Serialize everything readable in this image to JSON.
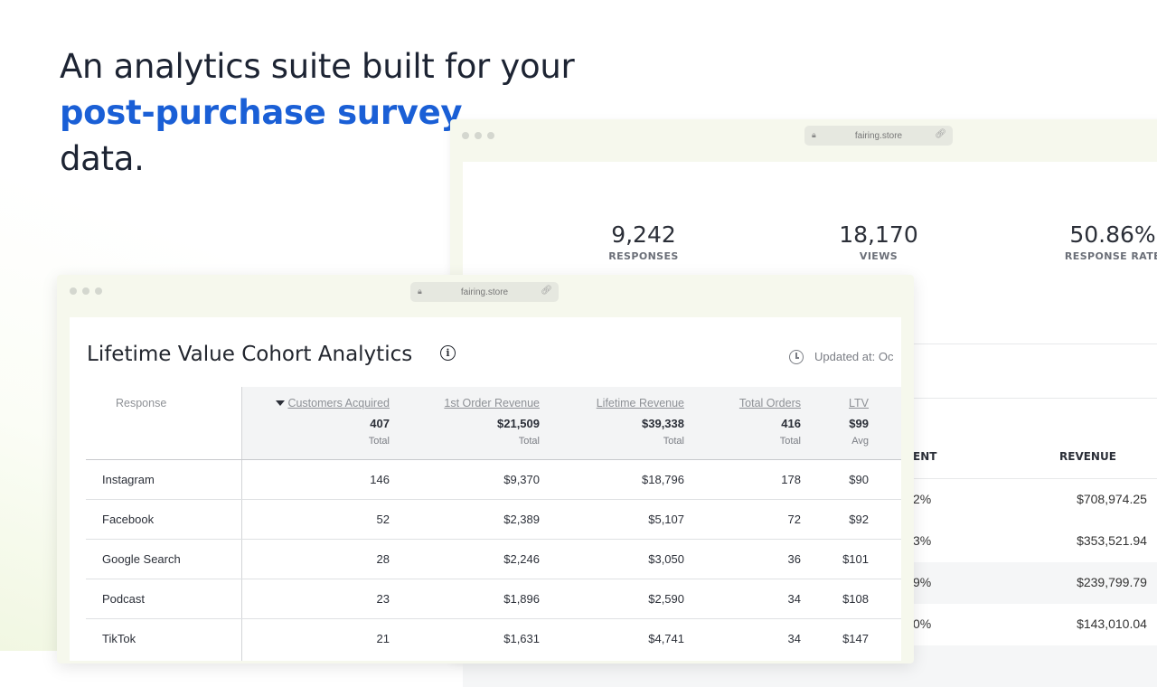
{
  "headline": {
    "line1": "An analytics suite built for your",
    "line2": "post-purchase survey",
    "line3": "data."
  },
  "colors": {
    "accent": "#1a5fd6",
    "text": "#1d2433"
  },
  "back_window": {
    "url": "fairing.store",
    "stats": [
      {
        "value": "9,242",
        "label": "RESPONSES"
      },
      {
        "value": "18,170",
        "label": "VIEWS"
      },
      {
        "value": "50.86%",
        "label": "RESPONSE RATE"
      }
    ],
    "columns": [
      "ENT",
      "REVENUE"
    ],
    "rows": [
      {
        "pct": "2%",
        "revenue": "$708,974.25"
      },
      {
        "pct": "3%",
        "revenue": "$353,521.94"
      },
      {
        "pct": "9%",
        "revenue": "$239,799.79"
      },
      {
        "pct": "0%",
        "revenue": "$143,010.04"
      }
    ]
  },
  "front_window": {
    "url": "fairing.store",
    "title": "Lifetime Value Cohort Analytics",
    "info_icon": "i",
    "updated": "Updated at: Oc",
    "columns": {
      "response": "Response",
      "customers": "Customers Acquired",
      "first_order": "1st Order Revenue",
      "lifetime": "Lifetime Revenue",
      "orders": "Total Orders",
      "ltv": "LTV"
    },
    "totals": {
      "customers": "407",
      "first_order": "$21,509",
      "lifetime": "$39,338",
      "orders": "416",
      "ltv": "$99"
    },
    "total_labels": {
      "customers": "Total",
      "first_order": "Total",
      "lifetime": "Total",
      "orders": "Total",
      "ltv": "Avg"
    },
    "rows": [
      {
        "response": "Instagram",
        "customers": "146",
        "first_order": "$9,370",
        "lifetime": "$18,796",
        "orders": "178",
        "ltv": "$90"
      },
      {
        "response": "Facebook",
        "customers": "52",
        "first_order": "$2,389",
        "lifetime": "$5,107",
        "orders": "72",
        "ltv": "$92"
      },
      {
        "response": "Google Search",
        "customers": "28",
        "first_order": "$2,246",
        "lifetime": "$3,050",
        "orders": "36",
        "ltv": "$101"
      },
      {
        "response": "Podcast",
        "customers": "23",
        "first_order": "$1,896",
        "lifetime": "$2,590",
        "orders": "34",
        "ltv": "$108"
      },
      {
        "response": "TikTok",
        "customers": "21",
        "first_order": "$1,631",
        "lifetime": "$4,741",
        "orders": "34",
        "ltv": "$147"
      }
    ]
  }
}
